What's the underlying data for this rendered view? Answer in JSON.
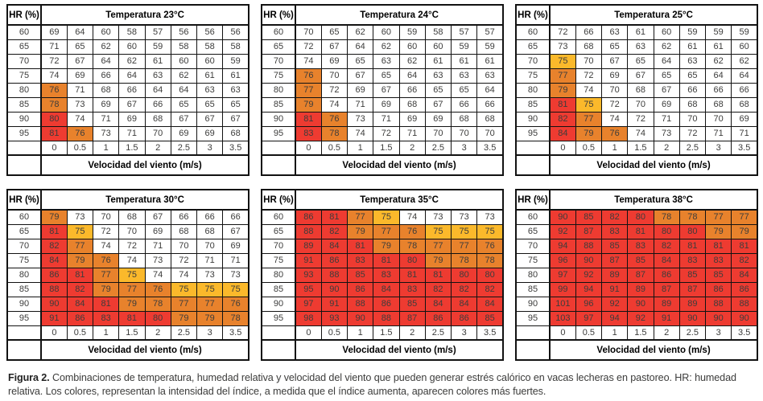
{
  "labels": {
    "hr_header": "HR (%)",
    "wind_axis": "Velocidad del viento (m/s)"
  },
  "hr_values": [
    60,
    65,
    70,
    75,
    80,
    85,
    90,
    95
  ],
  "wind_speeds": [
    "0",
    "0.5",
    "1",
    "1.5",
    "2",
    "2.5",
    "3",
    "3.5"
  ],
  "colors": {
    "red": "#ee3b31",
    "orange": "#e8822c",
    "yellow": "#fbb92b",
    "white": "#ffffff",
    "thresholds": {
      "red_min": 80,
      "orange_min": 76,
      "yellow_min": 75
    }
  },
  "caption": {
    "label": "Figura 2.",
    "text": " Combinaciones de temperatura, humedad relativa y velocidad del viento que pueden generar estrés calórico en vacas lecheras en pastoreo. HR: humedad relativa. Los colores, representan la intensidad del índice, a medida que el índice aumenta, aparecen colores más fuertes."
  },
  "chart_data": [
    {
      "type": "heatmap",
      "id": "23c",
      "title": "Temperatura  23°C",
      "xlabel": "Velocidad del viento (m/s)",
      "ylabel": "HR (%)",
      "x": [
        "0",
        "0.5",
        "1",
        "1.5",
        "2",
        "2.5",
        "3",
        "3.5"
      ],
      "y": [
        60,
        65,
        70,
        75,
        80,
        85,
        90,
        95
      ],
      "rows": [
        [
          69,
          64,
          60,
          58,
          57,
          56,
          56,
          56
        ],
        [
          71,
          65,
          62,
          60,
          59,
          58,
          58,
          58
        ],
        [
          72,
          67,
          64,
          62,
          61,
          60,
          60,
          59
        ],
        [
          74,
          69,
          66,
          64,
          63,
          62,
          61,
          61
        ],
        [
          76,
          71,
          68,
          66,
          64,
          64,
          63,
          63
        ],
        [
          78,
          73,
          69,
          67,
          66,
          65,
          65,
          65
        ],
        [
          80,
          74,
          71,
          69,
          68,
          67,
          67,
          67
        ],
        [
          81,
          76,
          73,
          71,
          70,
          69,
          69,
          68
        ]
      ]
    },
    {
      "type": "heatmap",
      "id": "24c",
      "title": "Temperatura 24°C",
      "xlabel": "Velocidad del viento (m/s)",
      "ylabel": "HR (%)",
      "x": [
        "0",
        "0.5",
        "1",
        "1.5",
        "2",
        "2.5",
        "3",
        "3.5"
      ],
      "y": [
        60,
        65,
        70,
        75,
        80,
        85,
        90,
        95
      ],
      "rows": [
        [
          70,
          65,
          62,
          60,
          59,
          58,
          57,
          57
        ],
        [
          72,
          67,
          64,
          62,
          60,
          60,
          59,
          59
        ],
        [
          74,
          69,
          65,
          63,
          62,
          61,
          61,
          61
        ],
        [
          76,
          70,
          67,
          65,
          64,
          63,
          63,
          63
        ],
        [
          77,
          72,
          69,
          67,
          66,
          65,
          65,
          64
        ],
        [
          79,
          74,
          71,
          69,
          68,
          67,
          66,
          66
        ],
        [
          81,
          76,
          73,
          71,
          69,
          69,
          68,
          68
        ],
        [
          83,
          78,
          74,
          72,
          71,
          70,
          70,
          70
        ]
      ]
    },
    {
      "type": "heatmap",
      "id": "25c",
      "title": "Temperatura 25°C",
      "xlabel": "Velocidad del viento (m/s)",
      "ylabel": "HR (%)",
      "x": [
        "0",
        "0.5",
        "1",
        "1.5",
        "2",
        "2.5",
        "3",
        "3.5"
      ],
      "y": [
        60,
        65,
        70,
        75,
        80,
        85,
        90,
        95
      ],
      "rows": [
        [
          72,
          66,
          63,
          61,
          60,
          59,
          59,
          59
        ],
        [
          73,
          68,
          65,
          63,
          62,
          61,
          61,
          60
        ],
        [
          75,
          70,
          67,
          65,
          64,
          63,
          62,
          62
        ],
        [
          77,
          72,
          69,
          67,
          65,
          65,
          64,
          64
        ],
        [
          79,
          74,
          70,
          68,
          67,
          66,
          66,
          66
        ],
        [
          81,
          75,
          72,
          70,
          69,
          68,
          68,
          68
        ],
        [
          82,
          77,
          74,
          72,
          71,
          70,
          70,
          69
        ],
        [
          84,
          79,
          76,
          74,
          73,
          72,
          71,
          71
        ]
      ]
    },
    {
      "type": "heatmap",
      "id": "30c",
      "title": "Temperatura 30°C",
      "xlabel": "Velocidad del viento (m/s)",
      "ylabel": "HR (%)",
      "x": [
        "0",
        "0.5",
        "1",
        "1.5",
        "2",
        "2.5",
        "3",
        "3.5"
      ],
      "y": [
        60,
        65,
        70,
        75,
        80,
        85,
        90,
        95
      ],
      "rows": [
        [
          79,
          73,
          70,
          68,
          67,
          66,
          66,
          66
        ],
        [
          81,
          75,
          72,
          70,
          69,
          68,
          68,
          67
        ],
        [
          82,
          77,
          74,
          72,
          71,
          70,
          70,
          69
        ],
        [
          84,
          79,
          76,
          74,
          73,
          72,
          71,
          71
        ],
        [
          86,
          81,
          77,
          75,
          74,
          74,
          73,
          73
        ],
        [
          88,
          82,
          79,
          77,
          76,
          75,
          75,
          75
        ],
        [
          90,
          84,
          81,
          79,
          78,
          77,
          77,
          76
        ],
        [
          91,
          86,
          83,
          81,
          80,
          79,
          79,
          78
        ]
      ]
    },
    {
      "type": "heatmap",
      "id": "35c",
      "title": "Temperatura 35°C",
      "xlabel": "Velocidad del viento (m/s)",
      "ylabel": "HR (%)",
      "x": [
        "0",
        "0.5",
        "1",
        "1.5",
        "2",
        "2.5",
        "3",
        "3.5"
      ],
      "y": [
        60,
        65,
        70,
        75,
        80,
        85,
        90,
        95
      ],
      "rows": [
        [
          86,
          81,
          77,
          75,
          74,
          73,
          73,
          73
        ],
        [
          88,
          82,
          79,
          77,
          76,
          75,
          75,
          75
        ],
        [
          89,
          84,
          81,
          79,
          78,
          77,
          77,
          76
        ],
        [
          91,
          86,
          83,
          81,
          80,
          79,
          78,
          78
        ],
        [
          93,
          88,
          85,
          83,
          81,
          81,
          80,
          80
        ],
        [
          95,
          90,
          86,
          84,
          83,
          82,
          82,
          82
        ],
        [
          97,
          91,
          88,
          86,
          85,
          84,
          84,
          84
        ],
        [
          98,
          93,
          90,
          88,
          87,
          86,
          86,
          85
        ]
      ]
    },
    {
      "type": "heatmap",
      "id": "38c",
      "title": "Temperatura 38°C",
      "xlabel": "Velocidad del viento (m/s)",
      "ylabel": "HR (%)",
      "x": [
        "0",
        "0.5",
        "1",
        "1.5",
        "2",
        "2.5",
        "3",
        "3.5"
      ],
      "y": [
        60,
        65,
        70,
        75,
        80,
        85,
        90,
        95
      ],
      "rows": [
        [
          90,
          85,
          82,
          80,
          78,
          78,
          77,
          77
        ],
        [
          92,
          87,
          83,
          81,
          80,
          80,
          79,
          79
        ],
        [
          94,
          88,
          85,
          83,
          82,
          81,
          81,
          81
        ],
        [
          96,
          90,
          87,
          85,
          84,
          83,
          83,
          82
        ],
        [
          97,
          92,
          89,
          87,
          86,
          85,
          85,
          84
        ],
        [
          99,
          94,
          91,
          89,
          87,
          87,
          86,
          86
        ],
        [
          101,
          96,
          92,
          90,
          89,
          89,
          88,
          88
        ],
        [
          103,
          97,
          94,
          92,
          91,
          90,
          90,
          90
        ]
      ]
    }
  ]
}
